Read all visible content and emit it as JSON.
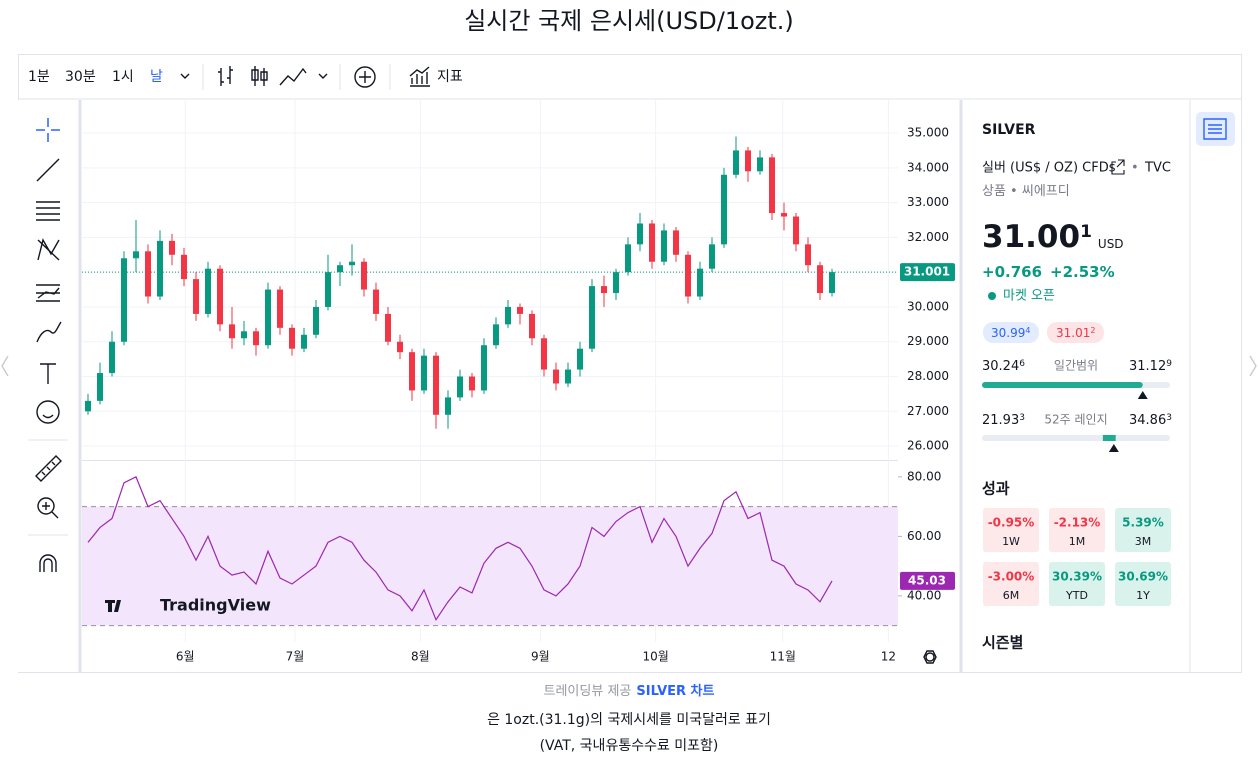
{
  "title": "실시간 국제 은시세(USD/1ozt.)",
  "toolbar": {
    "intervals": [
      "1분",
      "30분",
      "1시",
      "날"
    ],
    "indicators": "지표"
  },
  "chart_data": [
    {
      "type": "candlestick",
      "up_color": "#089981",
      "down_color": "#f23645",
      "grid": true,
      "xlim": [
        -0.5,
        67.5
      ],
      "xticks": [
        {
          "value": 8.1,
          "label": "6월"
        },
        {
          "value": 17.25,
          "label": "7월"
        },
        {
          "value": 27.7,
          "label": "8월"
        },
        {
          "value": 37.7,
          "label": "9월"
        },
        {
          "value": 47.3,
          "label": "10월"
        },
        {
          "value": 57.9,
          "label": "11월"
        },
        {
          "value": 66.7,
          "label": "12"
        }
      ],
      "ylim": [
        25.6,
        35.95
      ],
      "yticks": [
        {
          "value": 26,
          "label": "26.000"
        },
        {
          "value": 27,
          "label": "27.000"
        },
        {
          "value": 28,
          "label": "28.000"
        },
        {
          "value": 29,
          "label": "29.000"
        },
        {
          "value": 30,
          "label": "30.000"
        },
        {
          "value": 31,
          "label": "31.000"
        },
        {
          "value": 32,
          "label": "32.000"
        },
        {
          "value": 33,
          "label": "33.000"
        },
        {
          "value": 34,
          "label": "34.000"
        },
        {
          "value": 35,
          "label": "35.000"
        }
      ],
      "open": [
        27.0,
        27.3,
        28.1,
        29.0,
        31.4,
        31.6,
        30.3,
        31.9,
        31.5,
        30.8,
        29.8,
        31.1,
        29.5,
        29.1,
        29.3,
        28.9,
        30.5,
        29.4,
        28.8,
        29.2,
        30.0,
        31.0,
        31.2,
        31.3,
        30.5,
        29.8,
        29.0,
        28.7,
        27.6,
        28.6,
        26.9,
        27.4,
        28.0,
        27.6,
        28.9,
        29.5,
        30.0,
        29.8,
        29.1,
        28.2,
        27.8,
        28.2,
        28.8,
        30.6,
        30.4,
        31.0,
        31.8,
        32.4,
        31.3,
        32.2,
        31.5,
        30.3,
        31.1,
        31.8,
        33.8,
        34.5,
        33.9,
        34.3,
        32.7,
        32.6,
        31.8,
        31.2,
        30.4
      ],
      "high": [
        27.5,
        28.4,
        29.3,
        31.6,
        32.5,
        31.8,
        32.2,
        32.1,
        31.7,
        31.0,
        31.3,
        31.2,
        30.0,
        29.6,
        29.4,
        30.7,
        30.6,
        29.5,
        29.4,
        30.2,
        31.5,
        31.3,
        31.8,
        31.4,
        30.7,
        30.0,
        29.2,
        28.8,
        28.8,
        28.7,
        27.6,
        28.2,
        28.1,
        29.1,
        29.7,
        30.2,
        30.1,
        29.9,
        29.2,
        28.4,
        28.4,
        29.0,
        30.8,
        30.9,
        31.1,
        32.0,
        32.7,
        32.5,
        32.4,
        32.3,
        31.6,
        31.3,
        32.0,
        34.0,
        34.9,
        34.6,
        34.5,
        34.4,
        33.0,
        32.7,
        32.0,
        31.3,
        31.1
      ],
      "low": [
        26.9,
        27.2,
        28.0,
        28.9,
        31.0,
        30.1,
        30.2,
        31.2,
        30.6,
        29.6,
        29.7,
        29.3,
        28.8,
        28.9,
        28.6,
        28.8,
        29.2,
        28.6,
        28.7,
        29.1,
        29.9,
        30.6,
        30.9,
        30.3,
        29.6,
        28.9,
        28.5,
        27.3,
        27.5,
        26.5,
        26.5,
        27.3,
        27.4,
        27.5,
        28.8,
        29.4,
        29.5,
        28.9,
        28.0,
        27.6,
        27.7,
        28.0,
        28.7,
        30.0,
        30.2,
        30.9,
        31.6,
        31.1,
        31.2,
        31.3,
        30.1,
        30.2,
        31.0,
        31.7,
        33.7,
        33.6,
        33.8,
        32.5,
        32.2,
        31.6,
        31.0,
        30.2,
        30.3
      ],
      "close": [
        27.3,
        28.1,
        29.0,
        31.4,
        31.6,
        30.3,
        31.9,
        31.5,
        30.8,
        29.8,
        31.1,
        29.5,
        29.1,
        29.3,
        28.9,
        30.5,
        29.4,
        28.8,
        29.2,
        30.0,
        31.0,
        31.2,
        31.3,
        30.5,
        29.8,
        29.0,
        28.7,
        27.6,
        28.6,
        26.9,
        27.4,
        28.0,
        27.6,
        28.9,
        29.5,
        30.0,
        29.8,
        29.1,
        28.2,
        27.8,
        28.2,
        28.8,
        30.6,
        30.4,
        31.0,
        31.8,
        32.4,
        31.3,
        32.2,
        31.5,
        30.3,
        31.1,
        31.8,
        33.8,
        34.5,
        33.9,
        34.3,
        32.7,
        32.6,
        31.8,
        31.2,
        30.4,
        31.001
      ]
    },
    {
      "type": "line",
      "color": "#9c27b0",
      "band": [
        30,
        70
      ],
      "band_color": "#f3e6fc",
      "ylim": [
        24.5,
        85
      ],
      "yticks": [
        {
          "value": 40,
          "label": "40.00"
        },
        {
          "value": 60,
          "label": "60.00"
        },
        {
          "value": 80,
          "label": "80.00"
        }
      ],
      "values": [
        58,
        63,
        66,
        78,
        80,
        70,
        72,
        66,
        60,
        52,
        60,
        50,
        47,
        48,
        44,
        55,
        46,
        44,
        47,
        50,
        58,
        60,
        58,
        52,
        48,
        42,
        40,
        35,
        42,
        32,
        38,
        43,
        41,
        51,
        56,
        58,
        56,
        50,
        42,
        40,
        44,
        50,
        63,
        60,
        65,
        68,
        70,
        58,
        66,
        60,
        50,
        56,
        61,
        72,
        75,
        66,
        68,
        52,
        50,
        44,
        42,
        38,
        45.03
      ]
    }
  ],
  "watermark": "TradingView",
  "symbol": {
    "ticker": "SILVER",
    "description": "실버 (US$ / OZ) CFDs",
    "source": "TVC",
    "category": "상품",
    "kind": "씨에프디",
    "price_main": "31.00",
    "price_sup": "1",
    "currency": "USD",
    "change": "+0.766",
    "change_pct": "+2.53%",
    "status": "마켓 오픈",
    "bid_main": "30.99",
    "bid_sup": "4",
    "ask_main": "31.01",
    "ask_sup": "2",
    "day_low_main": "30.24",
    "day_low_sup": "6",
    "day_label": "일간범위",
    "day_high_main": "31.12",
    "day_high_sup": "9",
    "w52_low_main": "21.93",
    "w52_low_sup": "3",
    "w52_label": "52주 레인지",
    "w52_high_main": "34.86",
    "w52_high_sup": "3",
    "day_range": [
      30.246,
      31.129
    ],
    "w52_range": [
      21.933,
      34.863
    ],
    "current": 31.001
  },
  "performance": {
    "title": "성과",
    "values": [
      -0.95,
      -2.13,
      5.39,
      -3.0,
      30.39,
      30.69
    ],
    "value_labels": [
      "-0.95%",
      "-2.13%",
      "5.39%",
      "-3.00%",
      "30.39%",
      "30.69%"
    ],
    "periods": [
      "1W",
      "1M",
      "3M",
      "6M",
      "YTD",
      "1Y"
    ]
  },
  "seasonal": "시즌별",
  "footer": {
    "provider": "트레이딩뷰 제공",
    "link": "SILVER 차트",
    "note1": "은 1ozt.(31.1g)의 국제시세를 미국달러로 표기",
    "note2": "(VAT, 국내유통수수료 미포함)"
  }
}
